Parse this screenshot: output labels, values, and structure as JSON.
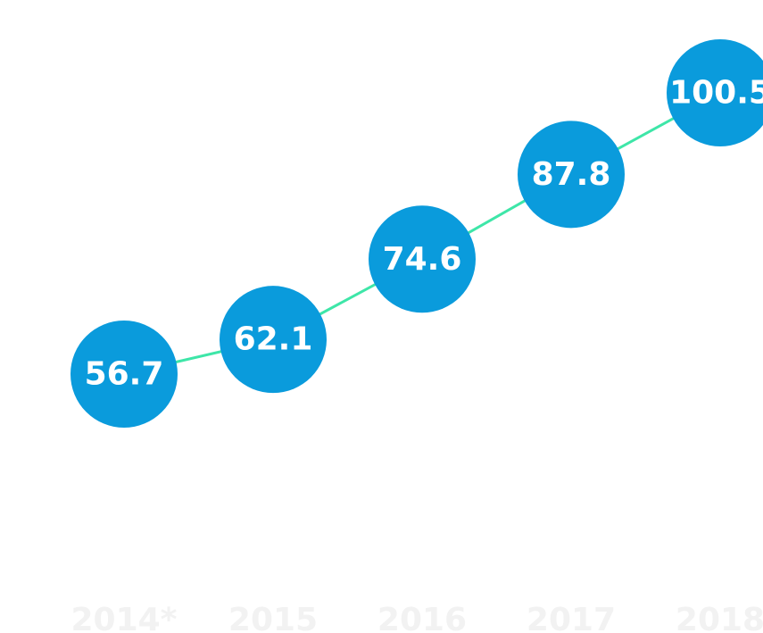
{
  "chart_data": {
    "type": "line",
    "categories": [
      "2014*",
      "2015",
      "2016",
      "2017",
      "2018"
    ],
    "values": [
      56.7,
      62.1,
      74.6,
      87.8,
      100.5
    ],
    "data_labels": [
      "56.7",
      "62.1",
      "74.6",
      "87.8",
      "100.5"
    ],
    "title": "",
    "xlabel": "",
    "ylabel": "",
    "ylim": [
      0,
      115
    ],
    "grid": false,
    "legend": "none"
  },
  "colors": {
    "line": "#3ee6a8",
    "marker": "#0a9bdc",
    "marker_text": "#ffffff",
    "tick_text": "#f2f2f2",
    "background": "#ffffff"
  }
}
